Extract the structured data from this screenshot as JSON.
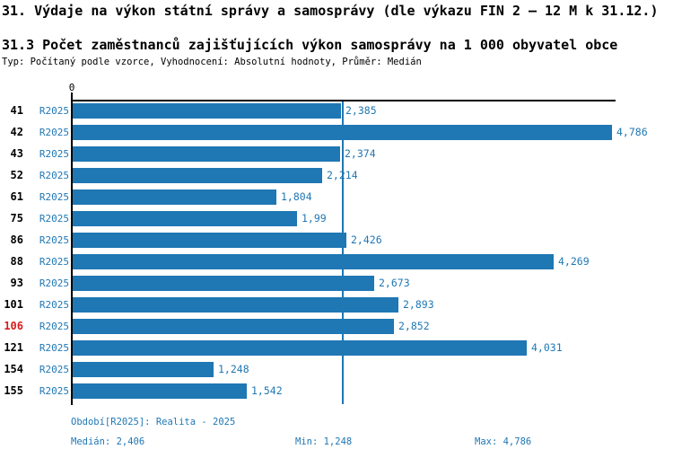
{
  "title": "31. Výdaje na výkon státní správy a samosprávy (dle výkazu FIN 2 – 12 M k 31.12.)",
  "subtitle": "31.3 Počet zaměstnanců zajišťujících výkon samosprávy na 1 000 obyvatel obce",
  "meta": "Typ: Počítaný podle vzorce, Vyhodnocení: Absolutní hodnoty, Průměr: Medián",
  "colors": {
    "accent": "#1f77b4",
    "highlight": "#d81b1b",
    "axis": "#000000"
  },
  "chart_data": {
    "type": "bar",
    "orientation": "horizontal",
    "series_label": "R2025",
    "categories": [
      "41",
      "42",
      "43",
      "52",
      "61",
      "75",
      "86",
      "88",
      "93",
      "101",
      "106",
      "121",
      "154",
      "155"
    ],
    "values": [
      2.385,
      4.786,
      2.374,
      2.214,
      1.804,
      1.99,
      2.426,
      4.269,
      2.673,
      2.893,
      2.852,
      4.031,
      1.248,
      1.542
    ],
    "value_labels": [
      "2,385",
      "4,786",
      "2,374",
      "2,214",
      "1,804",
      "1,99",
      "2,426",
      "4,269",
      "2,673",
      "2,893",
      "2,852",
      "4,031",
      "1,248",
      "1,542"
    ],
    "highlighted_category": "106",
    "x_tick_labels": [
      "0"
    ],
    "xlim": [
      0,
      4.786
    ],
    "median": 2.406,
    "grid": false,
    "legend": "none"
  },
  "footer": {
    "period": "Období[R2025]: Realita - 2025",
    "median": "Medián: 2,406",
    "min": "Min: 1,248",
    "max": "Max: 4,786"
  }
}
